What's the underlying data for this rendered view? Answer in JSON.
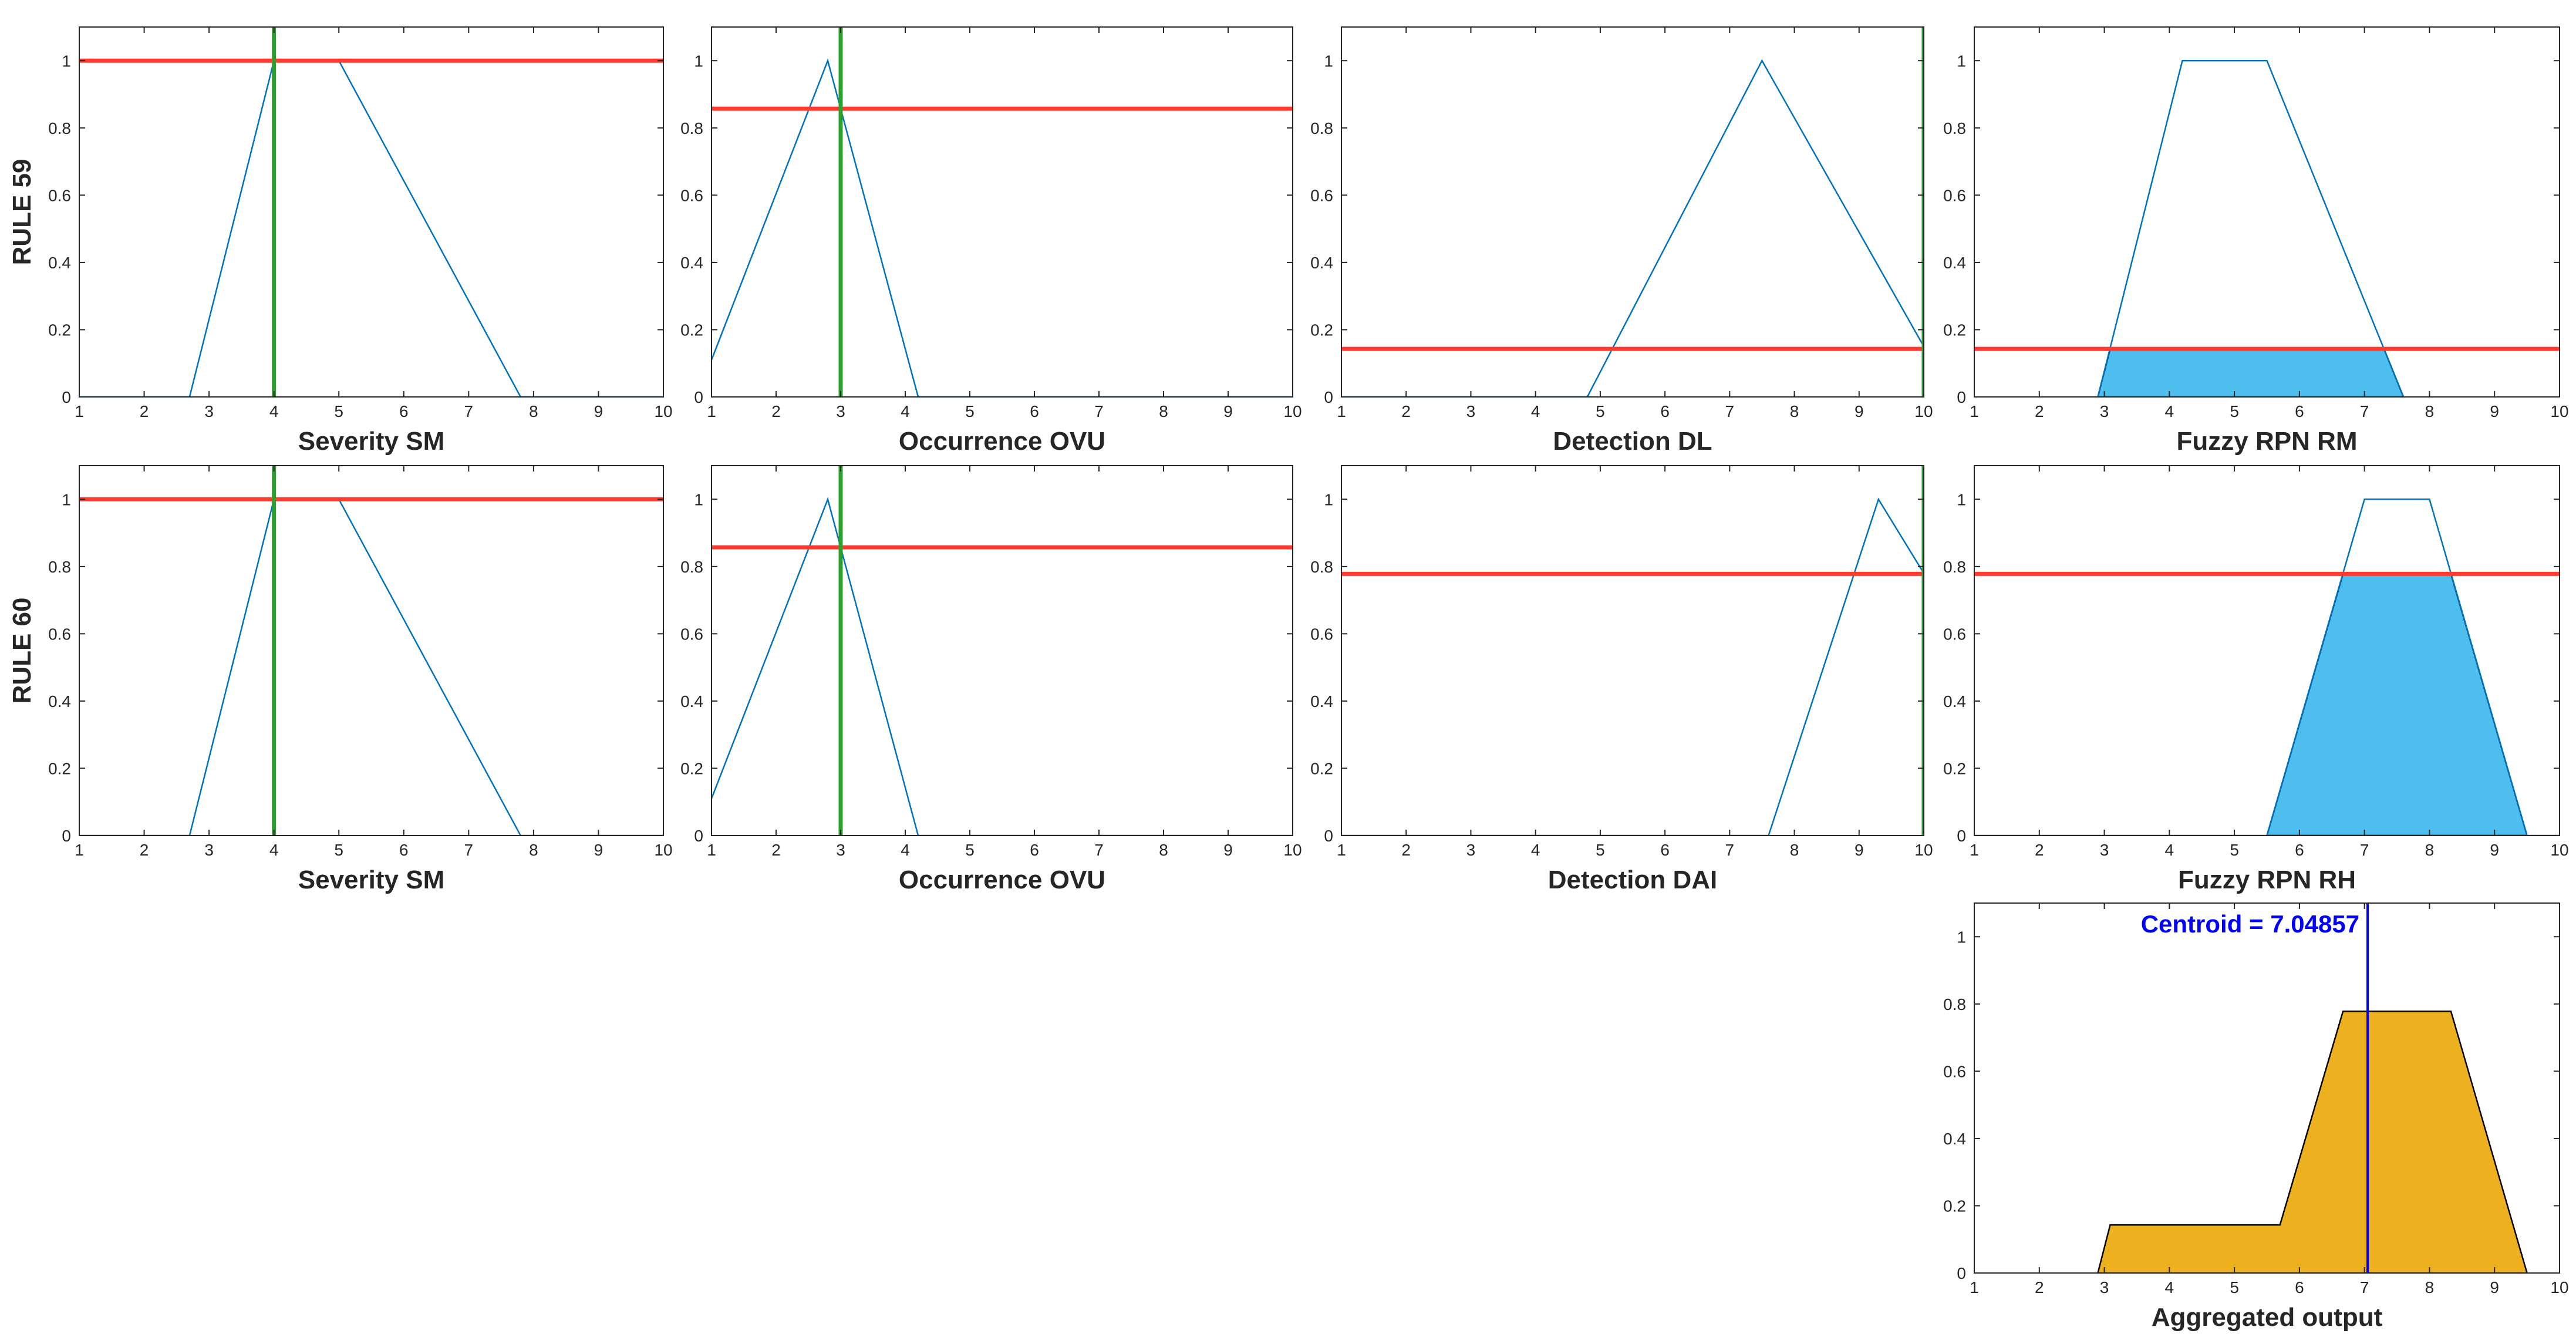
{
  "figure": {
    "row_labels": [
      "RULE 59",
      "RULE 60"
    ],
    "colors": {
      "membership": "#0072BD",
      "firing_level": "#FF3B30",
      "input_value": "#2CA02C",
      "rule_fill": "#4DBEEE",
      "aggregate_fill": "#EDB120",
      "centroid": "#0000FF",
      "outline": "#000000"
    }
  },
  "chart_data": [
    {
      "id": "r59-severity",
      "type": "line",
      "xlabel": "Severity SM",
      "xlim": [
        1,
        10
      ],
      "ylim": [
        0,
        1.1
      ],
      "xticks": [
        "1",
        "2",
        "3",
        "4",
        "5",
        "6",
        "7",
        "8",
        "9",
        "10"
      ],
      "yticks": [
        "0",
        "0.2",
        "0.4",
        "0.6",
        "0.8",
        "1"
      ],
      "series": [
        {
          "points": [
            [
              1,
              0
            ],
            [
              2.7,
              0
            ],
            [
              4,
              1
            ],
            [
              5,
              1
            ],
            [
              7.8,
              0
            ],
            [
              10,
              0
            ]
          ]
        }
      ],
      "firing_level": 1.0,
      "input_value": 4
    },
    {
      "id": "r59-occurrence",
      "type": "line",
      "xlabel": "Occurrence OVU",
      "xlim": [
        1,
        10
      ],
      "ylim": [
        0,
        1.1
      ],
      "xticks": [
        "1",
        "2",
        "3",
        "4",
        "5",
        "6",
        "7",
        "8",
        "9",
        "10"
      ],
      "yticks": [
        "0",
        "0.2",
        "0.4",
        "0.6",
        "0.8",
        "1"
      ],
      "series": [
        {
          "points": [
            [
              1,
              0.11
            ],
            [
              2.8,
              1
            ],
            [
              4.2,
              0
            ],
            [
              10,
              0
            ]
          ]
        }
      ],
      "firing_level": 0.857,
      "input_value": 3
    },
    {
      "id": "r59-detection",
      "type": "line",
      "xlabel": "Detection DL",
      "xlim": [
        1,
        10
      ],
      "ylim": [
        0,
        1.1
      ],
      "xticks": [
        "1",
        "2",
        "3",
        "4",
        "5",
        "6",
        "7",
        "8",
        "9",
        "10"
      ],
      "yticks": [
        "0",
        "0.2",
        "0.4",
        "0.6",
        "0.8",
        "1"
      ],
      "series": [
        {
          "points": [
            [
              1,
              0
            ],
            [
              4.8,
              0
            ],
            [
              7.5,
              1
            ],
            [
              10,
              0.15
            ]
          ]
        }
      ],
      "firing_level": 0.143,
      "input_value": 10
    },
    {
      "id": "r59-output",
      "type": "area",
      "xlabel": "Fuzzy RPN RM",
      "xlim": [
        1,
        10
      ],
      "ylim": [
        0,
        1.1
      ],
      "xticks": [
        "1",
        "2",
        "3",
        "4",
        "5",
        "6",
        "7",
        "8",
        "9",
        "10"
      ],
      "yticks": [
        "0",
        "0.2",
        "0.4",
        "0.6",
        "0.8",
        "1"
      ],
      "series": [
        {
          "points": [
            [
              2.9,
              0
            ],
            [
              4.2,
              1
            ],
            [
              5.5,
              1
            ],
            [
              7.6,
              0
            ]
          ]
        }
      ],
      "firing_level": 0.143,
      "clipped_fill": [
        [
          2.9,
          0
        ],
        [
          3.09,
          0.143
        ],
        [
          7.3,
          0.143
        ],
        [
          7.6,
          0
        ]
      ]
    },
    {
      "id": "r60-severity",
      "type": "line",
      "xlabel": "Severity SM",
      "xlim": [
        1,
        10
      ],
      "ylim": [
        0,
        1.1
      ],
      "xticks": [
        "1",
        "2",
        "3",
        "4",
        "5",
        "6",
        "7",
        "8",
        "9",
        "10"
      ],
      "yticks": [
        "0",
        "0.2",
        "0.4",
        "0.6",
        "0.8",
        "1"
      ],
      "series": [
        {
          "points": [
            [
              1,
              0
            ],
            [
              2.7,
              0
            ],
            [
              4,
              1
            ],
            [
              5,
              1
            ],
            [
              7.8,
              0
            ],
            [
              10,
              0
            ]
          ]
        }
      ],
      "firing_level": 1.0,
      "input_value": 4
    },
    {
      "id": "r60-occurrence",
      "type": "line",
      "xlabel": "Occurrence OVU",
      "xlim": [
        1,
        10
      ],
      "ylim": [
        0,
        1.1
      ],
      "xticks": [
        "1",
        "2",
        "3",
        "4",
        "5",
        "6",
        "7",
        "8",
        "9",
        "10"
      ],
      "yticks": [
        "0",
        "0.2",
        "0.4",
        "0.6",
        "0.8",
        "1"
      ],
      "series": [
        {
          "points": [
            [
              1,
              0.11
            ],
            [
              2.8,
              1
            ],
            [
              4.2,
              0
            ],
            [
              10,
              0
            ]
          ]
        }
      ],
      "firing_level": 0.857,
      "input_value": 3
    },
    {
      "id": "r60-detection",
      "type": "line",
      "xlabel": "Detection DAI",
      "xlim": [
        1,
        10
      ],
      "ylim": [
        0,
        1.1
      ],
      "xticks": [
        "1",
        "2",
        "3",
        "4",
        "5",
        "6",
        "7",
        "8",
        "9",
        "10"
      ],
      "yticks": [
        "0",
        "0.2",
        "0.4",
        "0.6",
        "0.8",
        "1"
      ],
      "series": [
        {
          "points": [
            [
              1,
              0
            ],
            [
              7.6,
              0
            ],
            [
              9.3,
              1
            ],
            [
              10,
              0.78
            ]
          ]
        }
      ],
      "firing_level": 0.778,
      "input_value": 10
    },
    {
      "id": "r60-output",
      "type": "area",
      "xlabel": "Fuzzy RPN RH",
      "xlim": [
        1,
        10
      ],
      "ylim": [
        0,
        1.1
      ],
      "xticks": [
        "1",
        "2",
        "3",
        "4",
        "5",
        "6",
        "7",
        "8",
        "9",
        "10"
      ],
      "yticks": [
        "0",
        "0.2",
        "0.4",
        "0.6",
        "0.8",
        "1"
      ],
      "series": [
        {
          "points": [
            [
              1,
              0
            ],
            [
              5.5,
              0
            ],
            [
              7,
              1
            ],
            [
              8,
              1
            ],
            [
              9.5,
              0
            ],
            [
              10,
              0
            ]
          ]
        }
      ],
      "firing_level": 0.778,
      "clipped_fill": [
        [
          5.5,
          0
        ],
        [
          6.67,
          0.778
        ],
        [
          8.33,
          0.778
        ],
        [
          9.5,
          0
        ]
      ]
    },
    {
      "id": "aggregate",
      "type": "area",
      "xlabel": "Aggregated output",
      "xlim": [
        1,
        10
      ],
      "ylim": [
        0,
        1.1
      ],
      "xticks": [
        "1",
        "2",
        "3",
        "4",
        "5",
        "6",
        "7",
        "8",
        "9",
        "10"
      ],
      "yticks": [
        "0",
        "0.2",
        "0.4",
        "0.6",
        "0.8",
        "1"
      ],
      "aggregate_fill": [
        [
          2.9,
          0
        ],
        [
          3.09,
          0.143
        ],
        [
          5.7,
          0.143
        ],
        [
          6.67,
          0.778
        ],
        [
          8.33,
          0.778
        ],
        [
          9.5,
          0
        ]
      ],
      "centroid_value": 7.04857,
      "centroid_label": "Centroid = 7.04857"
    }
  ]
}
